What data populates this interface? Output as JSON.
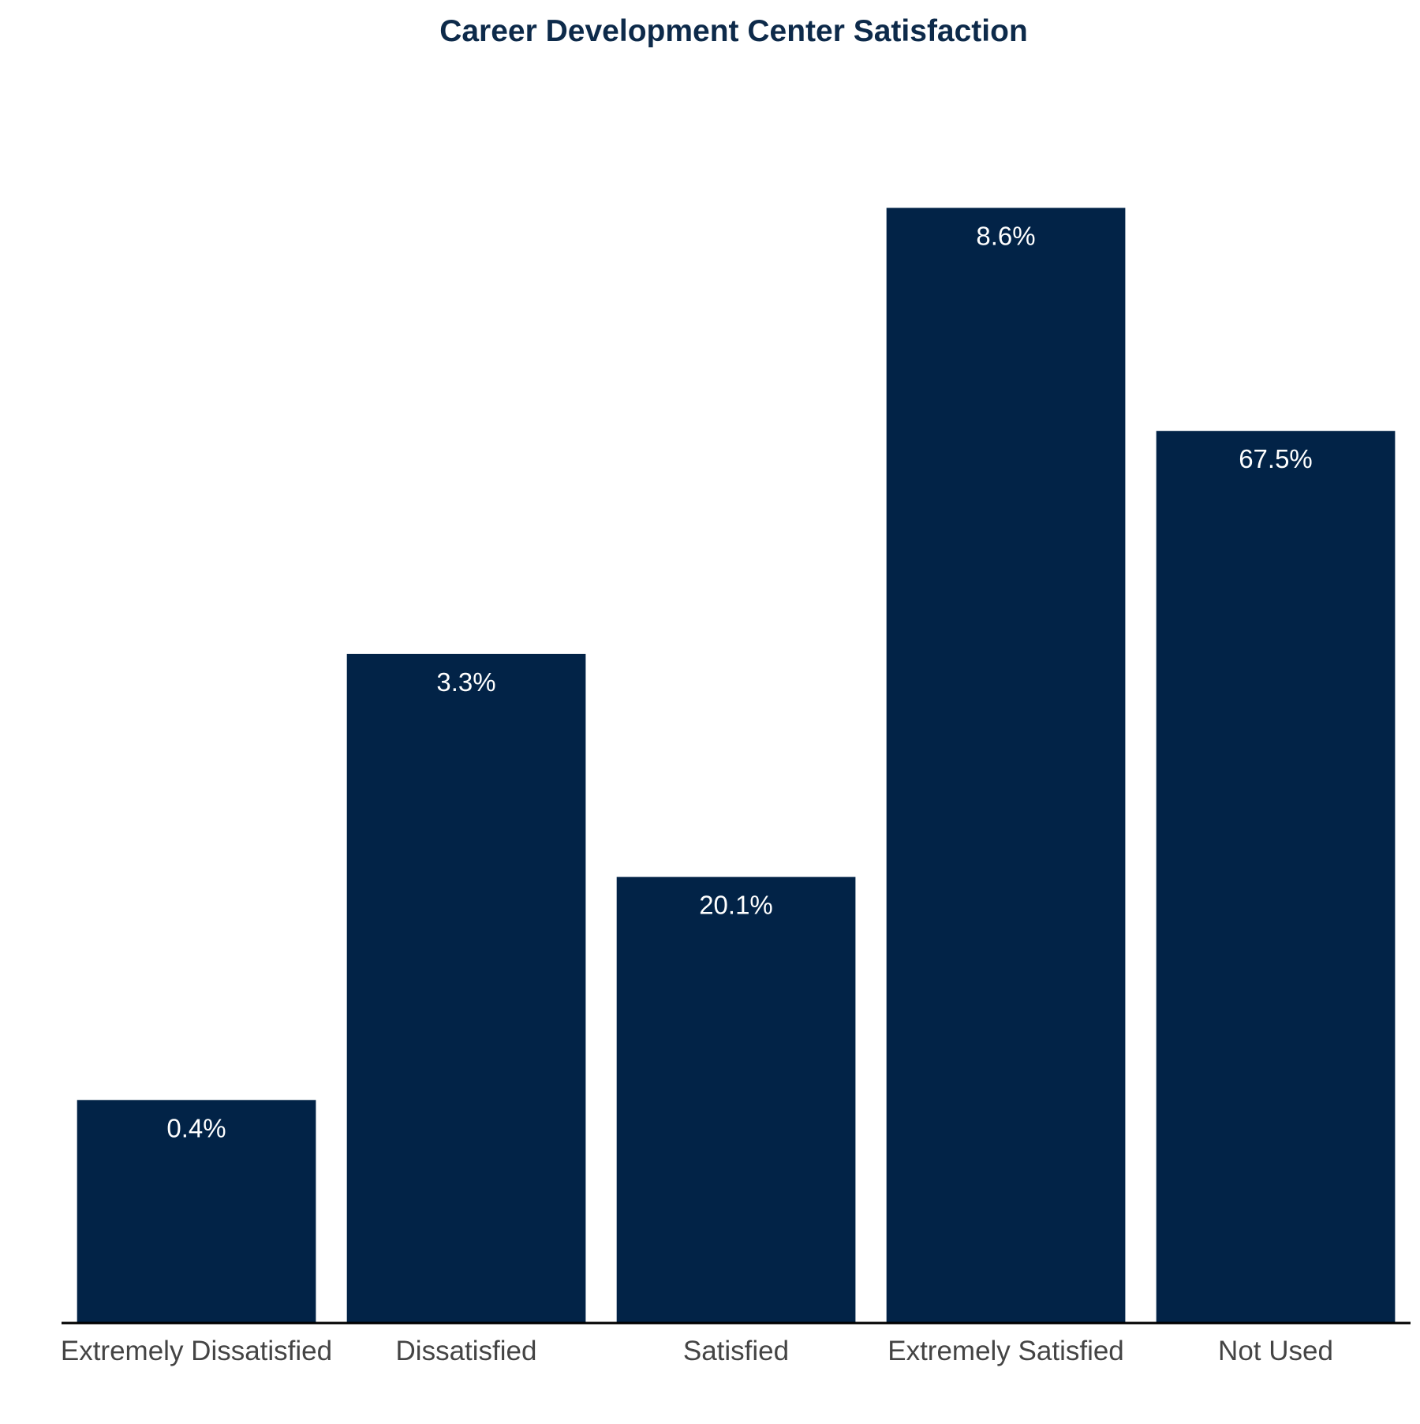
{
  "chart_data": {
    "type": "bar",
    "title": "Career Development Center Satisfaction",
    "xlabel": "",
    "ylabel": "",
    "categories": [
      "Extremely Dissatisfied",
      "Dissatisfied",
      "Satisfied",
      "Extremely Satisfied",
      "Not Used"
    ],
    "values": [
      1,
      3,
      2,
      5,
      4
    ],
    "data_labels": [
      "0.4%",
      "3.3%",
      "20.1%",
      "8.6%",
      "67.5%"
    ],
    "ylim": [
      0,
      5
    ],
    "grid": false,
    "legend": "none",
    "y_axis_visible": false
  },
  "colors": {
    "bar": "#022347",
    "title": "#0d2a4a",
    "bar_label": "#ffffff",
    "tick_label": "#444444",
    "axis_line": "#000000",
    "background": "#ffffff"
  }
}
